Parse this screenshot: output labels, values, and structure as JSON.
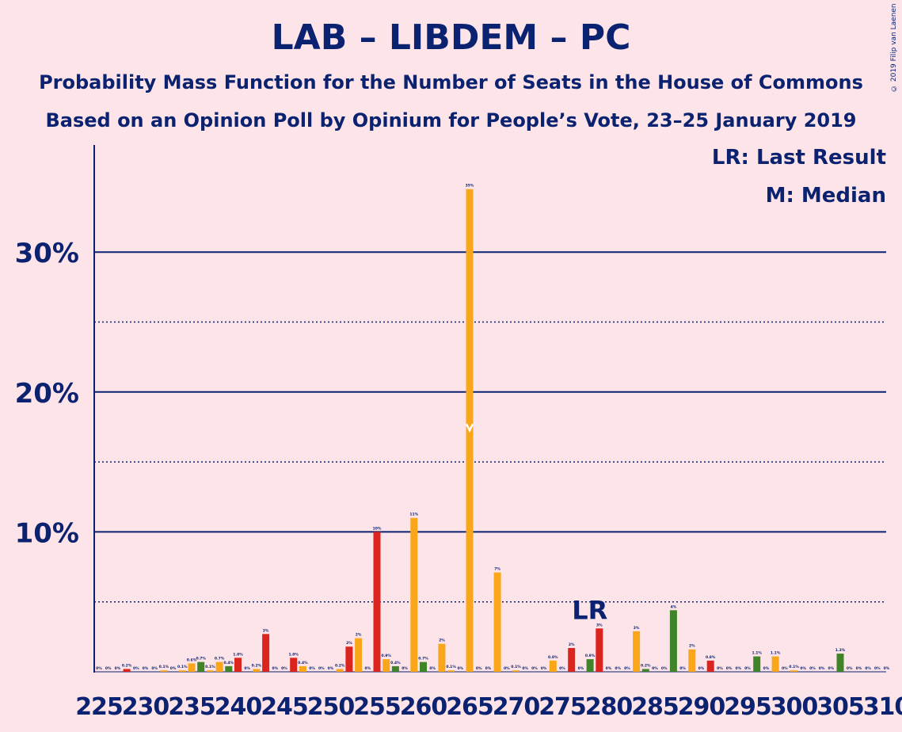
{
  "title": "LAB – LIBDEM – PC",
  "subtitle1": "Probability Mass Function for the Number of Seats in the House of Commons",
  "subtitle2": "Based on an Opinion Poll by Opinium for People’s Vote, 23–25 January 2019",
  "copyright": "© 2019 Filip van Laenen",
  "legend": {
    "lr": "LR: Last Result",
    "median": "M: Median"
  },
  "colors": {
    "background": "#fde4e8",
    "text": "#0b2270",
    "LAB": "#dc241f",
    "LIBDEM": "#faa61a",
    "PC": "#3f8428"
  },
  "chart_data": {
    "type": "bar",
    "xlabel": "",
    "ylabel": "",
    "ylim": [
      0,
      0.375
    ],
    "x_ticks": [
      225,
      230,
      235,
      240,
      245,
      250,
      255,
      260,
      265,
      270,
      275,
      280,
      285,
      290,
      295,
      300,
      305,
      310
    ],
    "y_ticks": [
      {
        "value": 0.1,
        "label": "10%"
      },
      {
        "value": 0.2,
        "label": "20%"
      },
      {
        "value": 0.3,
        "label": "30%"
      }
    ],
    "dotted_grid": [
      0.05,
      0.15,
      0.25
    ],
    "last_result": {
      "seat": 279,
      "label": "LR"
    },
    "median": {
      "seat": 265
    },
    "bars": [
      {
        "seat": 225,
        "value": 0.0,
        "label": "0%",
        "party": "LIBDEM"
      },
      {
        "seat": 226,
        "value": 0.0,
        "label": "0%",
        "party": "LIBDEM"
      },
      {
        "seat": 227,
        "value": 0.0,
        "label": "0%",
        "party": "LIBDEM"
      },
      {
        "seat": 228,
        "value": 0.002,
        "label": "0.2%",
        "party": "LAB"
      },
      {
        "seat": 229,
        "value": 0.0,
        "label": "0%",
        "party": "LIBDEM"
      },
      {
        "seat": 230,
        "value": 0.0,
        "label": "0%",
        "party": "LIBDEM"
      },
      {
        "seat": 231,
        "value": 0.0,
        "label": "0%",
        "party": "LIBDEM"
      },
      {
        "seat": 232,
        "value": 0.001,
        "label": "0.1%",
        "party": "LIBDEM"
      },
      {
        "seat": 233,
        "value": 0.0,
        "label": "0%",
        "party": "LIBDEM"
      },
      {
        "seat": 234,
        "value": 0.001,
        "label": "0.1%",
        "party": "LIBDEM"
      },
      {
        "seat": 235,
        "value": 0.006,
        "label": "0.6%",
        "party": "LIBDEM"
      },
      {
        "seat": 236,
        "value": 0.007,
        "label": "0.7%",
        "party": "PC"
      },
      {
        "seat": 237,
        "value": 0.001,
        "label": "0.1%",
        "party": "LIBDEM"
      },
      {
        "seat": 238,
        "value": 0.007,
        "label": "0.7%",
        "party": "LIBDEM"
      },
      {
        "seat": 239,
        "value": 0.004,
        "label": "0.4%",
        "party": "PC"
      },
      {
        "seat": 240,
        "value": 0.01,
        "label": "1.0%",
        "party": "LAB"
      },
      {
        "seat": 241,
        "value": 0.0,
        "label": "0%",
        "party": "LIBDEM"
      },
      {
        "seat": 242,
        "value": 0.002,
        "label": "0.2%",
        "party": "LIBDEM"
      },
      {
        "seat": 243,
        "value": 0.027,
        "label": "3%",
        "party": "LAB"
      },
      {
        "seat": 244,
        "value": 0.0,
        "label": "0%",
        "party": "LIBDEM"
      },
      {
        "seat": 245,
        "value": 0.0,
        "label": "0%",
        "party": "LIBDEM"
      },
      {
        "seat": 246,
        "value": 0.01,
        "label": "1.0%",
        "party": "LAB"
      },
      {
        "seat": 247,
        "value": 0.004,
        "label": "0.4%",
        "party": "LIBDEM"
      },
      {
        "seat": 248,
        "value": 0.0,
        "label": "0%",
        "party": "LIBDEM"
      },
      {
        "seat": 249,
        "value": 0.0,
        "label": "0%",
        "party": "LIBDEM"
      },
      {
        "seat": 250,
        "value": 0.0,
        "label": "0%",
        "party": "LIBDEM"
      },
      {
        "seat": 251,
        "value": 0.002,
        "label": "0.2%",
        "party": "LIBDEM"
      },
      {
        "seat": 252,
        "value": 0.018,
        "label": "2%",
        "party": "LAB"
      },
      {
        "seat": 253,
        "value": 0.024,
        "label": "2%",
        "party": "LIBDEM"
      },
      {
        "seat": 254,
        "value": 0.0,
        "label": "0%",
        "party": "LIBDEM"
      },
      {
        "seat": 255,
        "value": 0.1,
        "label": "10%",
        "party": "LAB"
      },
      {
        "seat": 256,
        "value": 0.009,
        "label": "0.9%",
        "party": "LIBDEM"
      },
      {
        "seat": 257,
        "value": 0.004,
        "label": "0.4%",
        "party": "PC"
      },
      {
        "seat": 258,
        "value": 0.0,
        "label": "0%",
        "party": "LIBDEM"
      },
      {
        "seat": 259,
        "value": 0.11,
        "label": "11%",
        "party": "LIBDEM"
      },
      {
        "seat": 260,
        "value": 0.007,
        "label": "0.7%",
        "party": "PC"
      },
      {
        "seat": 261,
        "value": 0.0,
        "label": "0%",
        "party": "LIBDEM"
      },
      {
        "seat": 262,
        "value": 0.02,
        "label": "2%",
        "party": "LIBDEM"
      },
      {
        "seat": 263,
        "value": 0.001,
        "label": "0.1%",
        "party": "LIBDEM"
      },
      {
        "seat": 264,
        "value": 0.0,
        "label": "0%",
        "party": "LIBDEM"
      },
      {
        "seat": 265,
        "value": 0.345,
        "label": "35%",
        "party": "LIBDEM"
      },
      {
        "seat": 266,
        "value": 0.0,
        "label": "0%",
        "party": "LIBDEM"
      },
      {
        "seat": 267,
        "value": 0.0,
        "label": "0%",
        "party": "LIBDEM"
      },
      {
        "seat": 268,
        "value": 0.071,
        "label": "7%",
        "party": "LIBDEM"
      },
      {
        "seat": 269,
        "value": 0.0,
        "label": "0%",
        "party": "LIBDEM"
      },
      {
        "seat": 270,
        "value": 0.001,
        "label": "0.1%",
        "party": "LIBDEM"
      },
      {
        "seat": 271,
        "value": 0.0,
        "label": "0%",
        "party": "LIBDEM"
      },
      {
        "seat": 272,
        "value": 0.0,
        "label": "0%",
        "party": "LIBDEM"
      },
      {
        "seat": 273,
        "value": 0.0,
        "label": "0%",
        "party": "LIBDEM"
      },
      {
        "seat": 274,
        "value": 0.008,
        "label": "0.8%",
        "party": "LIBDEM"
      },
      {
        "seat": 275,
        "value": 0.0,
        "label": "0%",
        "party": "LIBDEM"
      },
      {
        "seat": 276,
        "value": 0.017,
        "label": "2%",
        "party": "LAB"
      },
      {
        "seat": 277,
        "value": 0.0,
        "label": "0%",
        "party": "LIBDEM"
      },
      {
        "seat": 278,
        "value": 0.009,
        "label": "0.9%",
        "party": "PC"
      },
      {
        "seat": 279,
        "value": 0.031,
        "label": "3%",
        "party": "LAB"
      },
      {
        "seat": 280,
        "value": 0.0,
        "label": "0%",
        "party": "LIBDEM"
      },
      {
        "seat": 281,
        "value": 0.0,
        "label": "0%",
        "party": "LIBDEM"
      },
      {
        "seat": 282,
        "value": 0.0,
        "label": "0%",
        "party": "LIBDEM"
      },
      {
        "seat": 283,
        "value": 0.029,
        "label": "3%",
        "party": "LIBDEM"
      },
      {
        "seat": 284,
        "value": 0.002,
        "label": "0.2%",
        "party": "PC"
      },
      {
        "seat": 285,
        "value": 0.0,
        "label": "0%",
        "party": "LIBDEM"
      },
      {
        "seat": 286,
        "value": 0.0,
        "label": "0%",
        "party": "LIBDEM"
      },
      {
        "seat": 287,
        "value": 0.044,
        "label": "4%",
        "party": "PC"
      },
      {
        "seat": 288,
        "value": 0.0,
        "label": "0%",
        "party": "LIBDEM"
      },
      {
        "seat": 289,
        "value": 0.016,
        "label": "2%",
        "party": "LIBDEM"
      },
      {
        "seat": 290,
        "value": 0.0,
        "label": "0%",
        "party": "LIBDEM"
      },
      {
        "seat": 291,
        "value": 0.008,
        "label": "0.8%",
        "party": "LAB"
      },
      {
        "seat": 292,
        "value": 0.0,
        "label": "0%",
        "party": "LIBDEM"
      },
      {
        "seat": 293,
        "value": 0.0,
        "label": "0%",
        "party": "LIBDEM"
      },
      {
        "seat": 294,
        "value": 0.0,
        "label": "0%",
        "party": "LIBDEM"
      },
      {
        "seat": 295,
        "value": 0.0,
        "label": "0%",
        "party": "LIBDEM"
      },
      {
        "seat": 296,
        "value": 0.011,
        "label": "1.1%",
        "party": "PC"
      },
      {
        "seat": 297,
        "value": 0.0,
        "label": "0%",
        "party": "LIBDEM"
      },
      {
        "seat": 298,
        "value": 0.011,
        "label": "1.1%",
        "party": "LIBDEM"
      },
      {
        "seat": 299,
        "value": 0.0,
        "label": "0%",
        "party": "LIBDEM"
      },
      {
        "seat": 300,
        "value": 0.001,
        "label": "0.1%",
        "party": "LIBDEM"
      },
      {
        "seat": 301,
        "value": 0.0,
        "label": "0%",
        "party": "LIBDEM"
      },
      {
        "seat": 302,
        "value": 0.0,
        "label": "0%",
        "party": "LIBDEM"
      },
      {
        "seat": 303,
        "value": 0.0,
        "label": "0%",
        "party": "LIBDEM"
      },
      {
        "seat": 304,
        "value": 0.0,
        "label": "0%",
        "party": "LIBDEM"
      },
      {
        "seat": 305,
        "value": 0.013,
        "label": "1.3%",
        "party": "PC"
      },
      {
        "seat": 306,
        "value": 0.0,
        "label": "0%",
        "party": "LIBDEM"
      },
      {
        "seat": 307,
        "value": 0.0,
        "label": "0%",
        "party": "LIBDEM"
      },
      {
        "seat": 308,
        "value": 0.0,
        "label": "0%",
        "party": "LIBDEM"
      },
      {
        "seat": 309,
        "value": 0.0,
        "label": "0%",
        "party": "LIBDEM"
      },
      {
        "seat": 310,
        "value": 0.0,
        "label": "0%",
        "party": "LIBDEM"
      }
    ]
  }
}
